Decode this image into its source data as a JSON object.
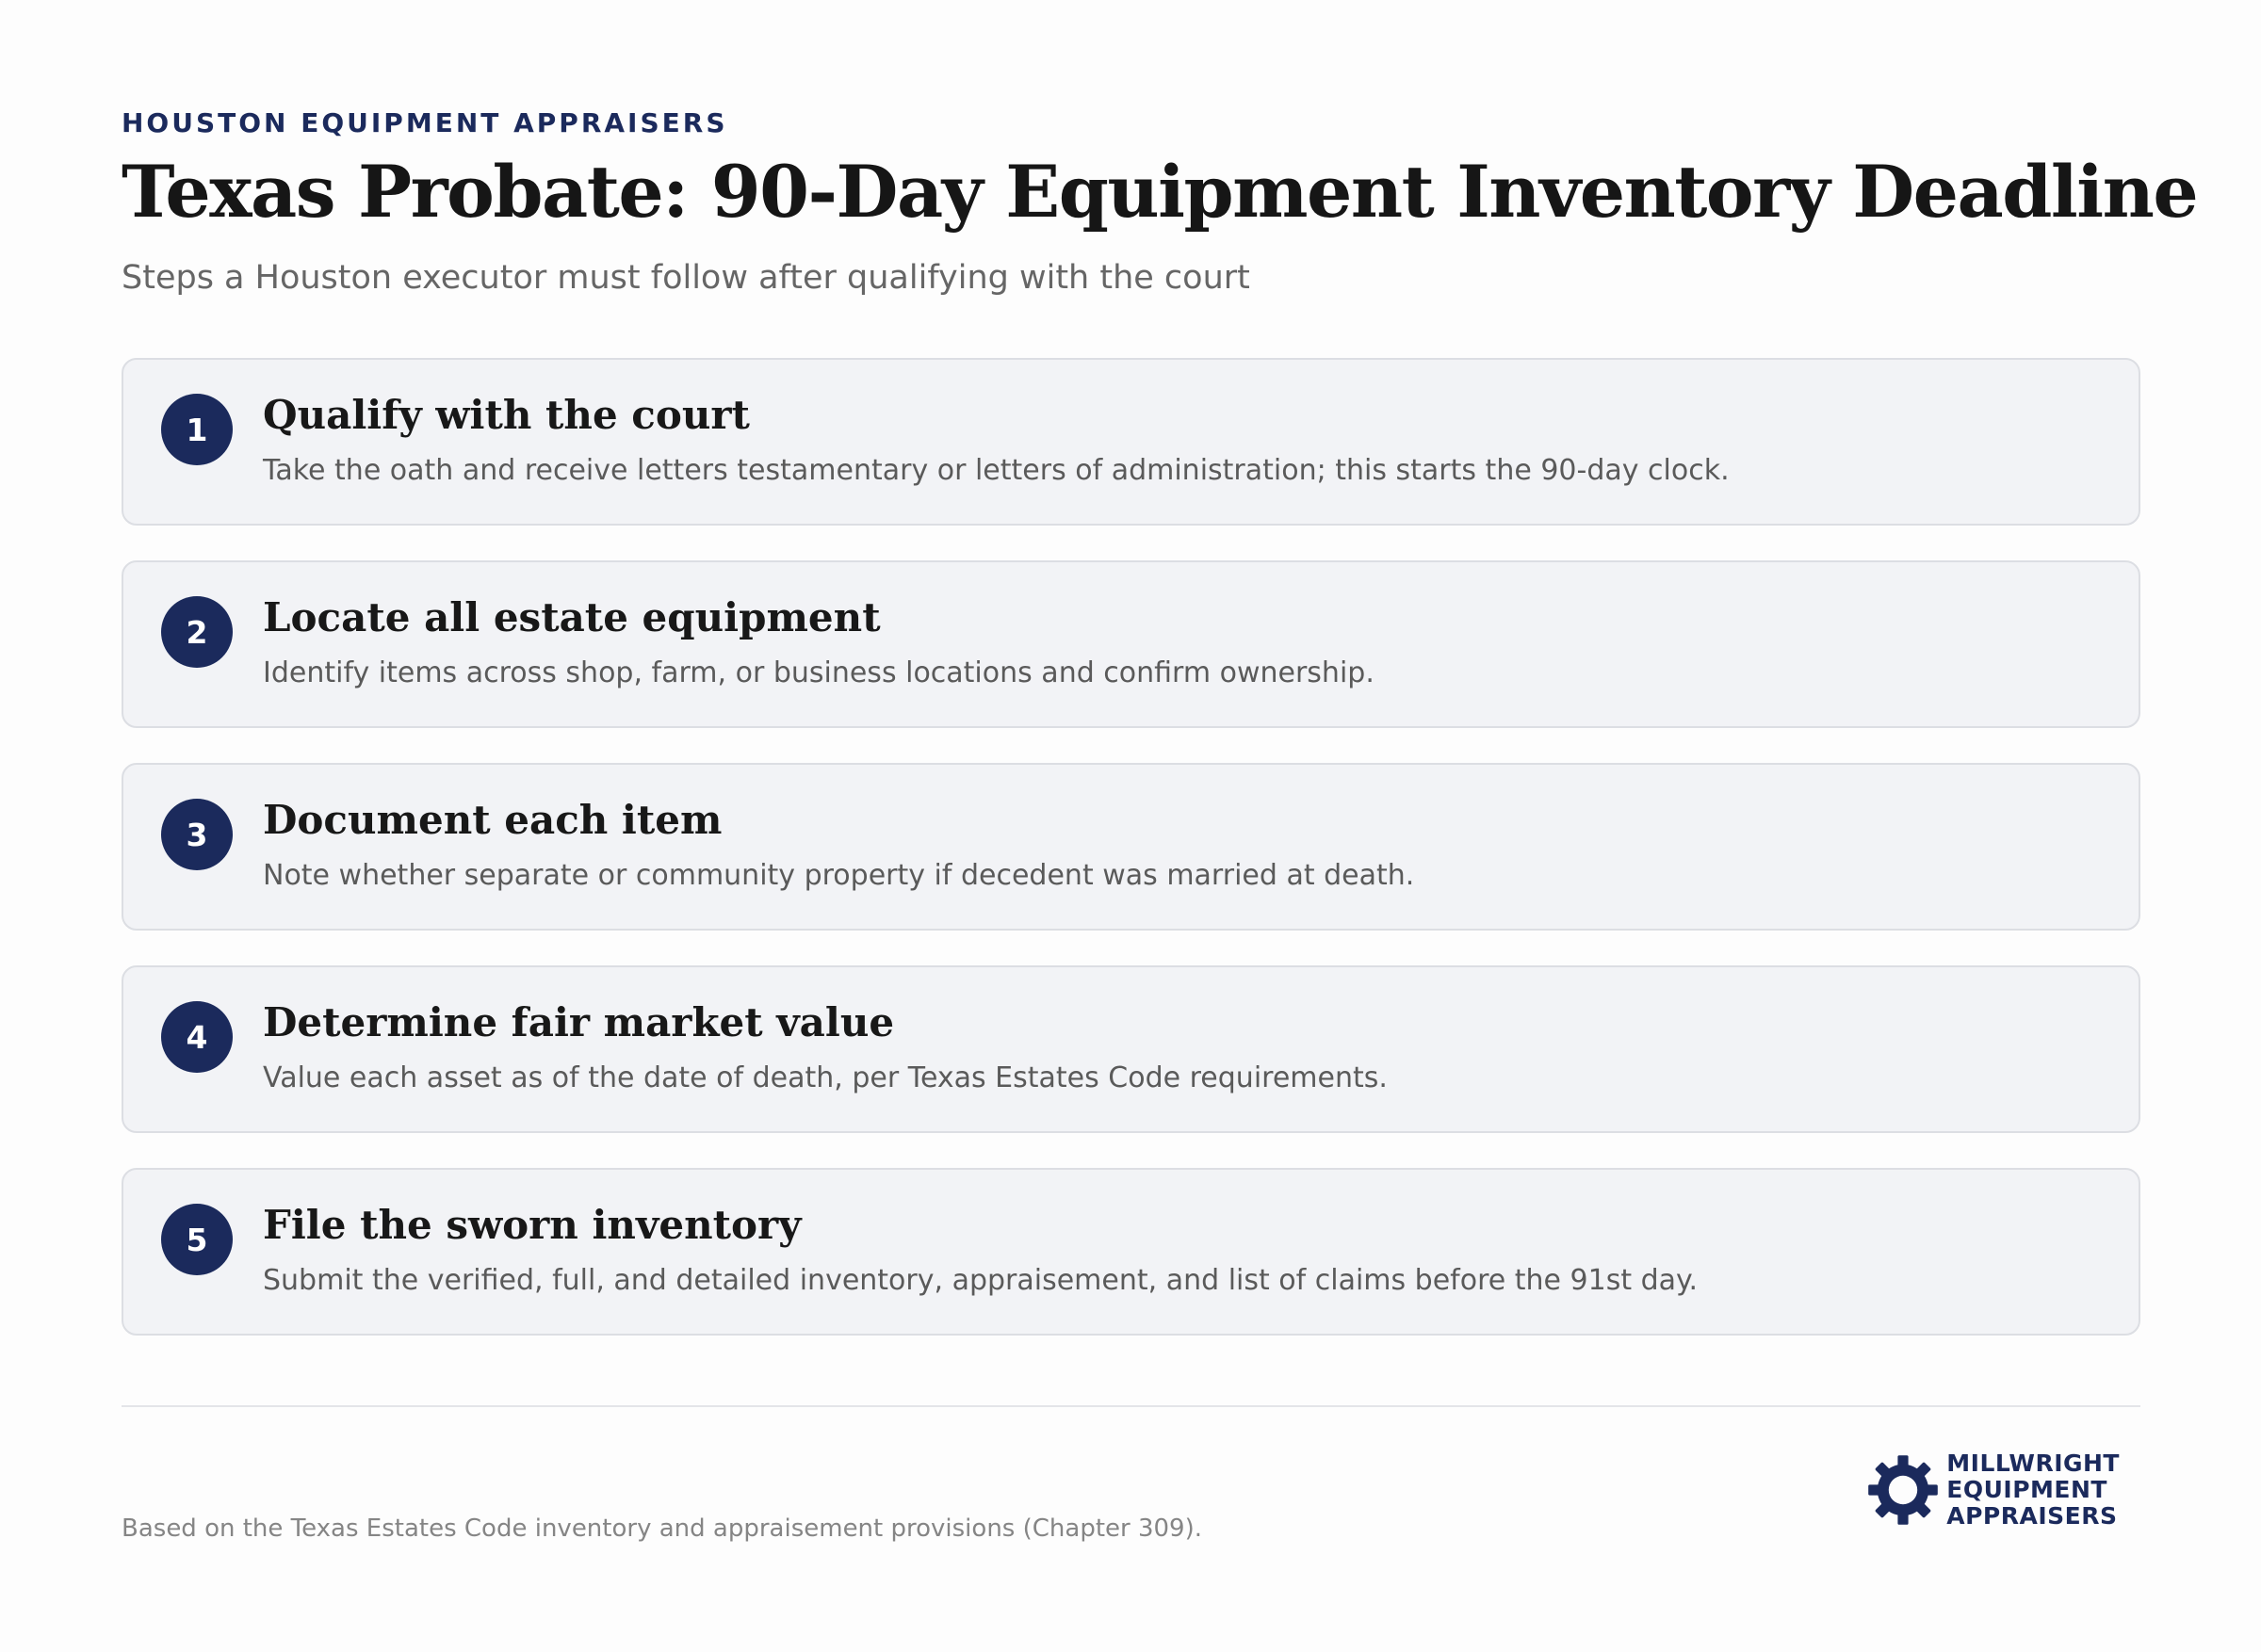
{
  "header": {
    "eyebrow": "HOUSTON EQUIPMENT APPRAISERS",
    "title": "Texas Probate: 90-Day Equipment Inventory Deadline",
    "subtitle": "Steps a Houston executor must follow after qualifying with the court"
  },
  "steps": [
    {
      "number": "1",
      "title": "Qualify with the court",
      "description": "Take the oath and receive letters testamentary or letters of administration; this starts the 90-day clock."
    },
    {
      "number": "2",
      "title": "Locate all estate equipment",
      "description": "Identify items across shop, farm, or business locations and confirm ownership."
    },
    {
      "number": "3",
      "title": "Document each item",
      "description": "Note whether separate or community property if decedent was married at death."
    },
    {
      "number": "4",
      "title": "Determine fair market value",
      "description": "Value each asset as of the date of death, per Texas Estates Code requirements."
    },
    {
      "number": "5",
      "title": "File the sworn inventory",
      "description": "Submit the verified, full, and detailed inventory, appraisement, and list of claims before the 91st day."
    }
  ],
  "footer": {
    "footnote": "Based on the Texas Estates Code inventory and appraisement provisions (Chapter 309).",
    "logo": {
      "icon": "gear-icon",
      "line1": "MILLWRIGHT",
      "line2": "EQUIPMENT",
      "line3": "APPRAISERS"
    }
  },
  "colors": {
    "accent": "#1b2a5c",
    "card_background": "#f2f3f6",
    "card_border": "#dcdee3"
  }
}
